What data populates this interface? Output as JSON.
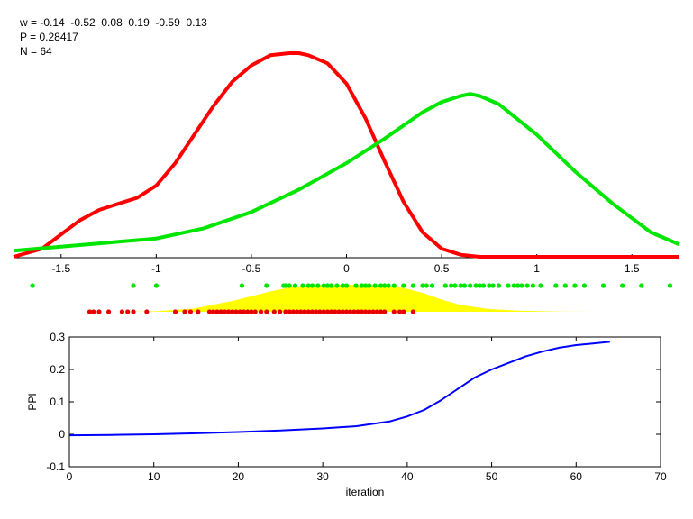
{
  "info": {
    "weights_line": "w = -0.14  -0.52  0.08  0.19  -0.59  0.13",
    "p_line": "P = 0.28417",
    "n_line": "N = 64"
  },
  "chart_data": [
    {
      "type": "line",
      "xlim": [
        -1.75,
        1.75
      ],
      "xticks": [
        "-1.5",
        "-1",
        "-0.5",
        "0",
        "0.5",
        "1",
        "1.5"
      ],
      "xtick_values": [
        -1.5,
        -1,
        -0.5,
        0,
        0.5,
        1,
        1.5
      ],
      "yaxis_visible": false,
      "series": [
        {
          "color": "#ff0000",
          "x": [
            -1.75,
            -1.6,
            -1.5,
            -1.4,
            -1.3,
            -1.2,
            -1.1,
            -1.0,
            -0.9,
            -0.8,
            -0.7,
            -0.6,
            -0.5,
            -0.4,
            -0.3,
            -0.25,
            -0.2,
            -0.1,
            0.0,
            0.1,
            0.2,
            0.3,
            0.4,
            0.5,
            0.6,
            0.7,
            0.8,
            1.0,
            1.2,
            1.5,
            1.75
          ],
          "y": [
            0.0,
            0.04,
            0.11,
            0.18,
            0.23,
            0.26,
            0.29,
            0.35,
            0.46,
            0.6,
            0.74,
            0.86,
            0.94,
            0.99,
            1.0,
            1.0,
            0.99,
            0.95,
            0.85,
            0.68,
            0.47,
            0.27,
            0.12,
            0.04,
            0.01,
            0.0,
            0.0,
            0.0,
            0.0,
            0.0,
            0.0
          ]
        },
        {
          "color": "#00e600",
          "x": [
            -1.75,
            -1.5,
            -1.25,
            -1.0,
            -0.75,
            -0.5,
            -0.25,
            0.0,
            0.2,
            0.4,
            0.5,
            0.6,
            0.65,
            0.7,
            0.8,
            1.0,
            1.2,
            1.4,
            1.6,
            1.75
          ],
          "y": [
            0.03,
            0.05,
            0.07,
            0.09,
            0.14,
            0.22,
            0.33,
            0.46,
            0.58,
            0.71,
            0.76,
            0.79,
            0.8,
            0.79,
            0.75,
            0.6,
            0.42,
            0.26,
            0.12,
            0.06
          ]
        }
      ]
    },
    {
      "type": "scatter",
      "xlim": [
        -1.75,
        1.75
      ],
      "green_points": [
        -1.65,
        -1.12,
        -1.0,
        -0.55,
        -0.42,
        -0.33,
        -0.32,
        -0.3,
        -0.27,
        -0.23,
        -0.2,
        -0.18,
        -0.15,
        -0.12,
        -0.1,
        -0.08,
        -0.05,
        -0.02,
        0.0,
        0.05,
        0.08,
        0.1,
        0.12,
        0.15,
        0.18,
        0.2,
        0.22,
        0.25,
        0.3,
        0.35,
        0.4,
        0.42,
        0.45,
        0.52,
        0.55,
        0.57,
        0.6,
        0.62,
        0.65,
        0.68,
        0.7,
        0.72,
        0.75,
        0.77,
        0.8,
        0.85,
        0.88,
        0.9,
        0.92,
        0.95,
        0.98,
        1.02,
        1.1,
        1.15,
        1.2,
        1.25,
        1.35,
        1.45,
        1.55,
        1.7
      ],
      "red_points": [
        -1.35,
        -1.33,
        -1.3,
        -1.25,
        -1.18,
        -1.15,
        -1.12,
        -1.05,
        -0.9,
        -0.85,
        -0.82,
        -0.78,
        -0.72,
        -0.7,
        -0.68,
        -0.66,
        -0.64,
        -0.62,
        -0.6,
        -0.58,
        -0.56,
        -0.54,
        -0.52,
        -0.5,
        -0.48,
        -0.45,
        -0.42,
        -0.38,
        -0.35,
        -0.32,
        -0.3,
        -0.28,
        -0.26,
        -0.24,
        -0.22,
        -0.2,
        -0.18,
        -0.16,
        -0.14,
        -0.12,
        -0.1,
        -0.08,
        -0.06,
        -0.04,
        -0.02,
        0.0,
        0.02,
        0.04,
        0.06,
        0.08,
        0.1,
        0.12,
        0.14,
        0.16,
        0.18,
        0.2,
        0.25,
        0.28,
        0.3,
        0.35
      ],
      "fill_color": "#ffff00",
      "fill_x": [
        -1.15,
        -1.0,
        -0.8,
        -0.6,
        -0.4,
        -0.3,
        -0.2,
        -0.1,
        0.0,
        0.1,
        0.2,
        0.3,
        0.4,
        0.5,
        0.6,
        0.75,
        0.9,
        1.1,
        1.3
      ],
      "fill_y": [
        0.0,
        0.02,
        0.12,
        0.4,
        0.75,
        0.9,
        0.98,
        1.0,
        1.0,
        0.99,
        0.97,
        0.88,
        0.7,
        0.45,
        0.25,
        0.1,
        0.04,
        0.01,
        0.0
      ]
    },
    {
      "type": "line",
      "xlabel": "iteration",
      "ylabel": "PPI",
      "xlim": [
        0,
        70
      ],
      "ylim": [
        -0.1,
        0.3
      ],
      "xticks": [
        "0",
        "10",
        "20",
        "30",
        "40",
        "50",
        "60",
        "70"
      ],
      "xtick_values": [
        0,
        10,
        20,
        30,
        40,
        50,
        60,
        70
      ],
      "yticks": [
        "-0.1",
        "0",
        "0.1",
        "0.2",
        "0.3"
      ],
      "ytick_values": [
        -0.1,
        0,
        0.1,
        0.2,
        0.3
      ],
      "series": [
        {
          "color": "#0000ff",
          "x": [
            0,
            5,
            10,
            15,
            20,
            25,
            30,
            34,
            38,
            40,
            42,
            44,
            46,
            48,
            50,
            52,
            54,
            56,
            58,
            60,
            62,
            64
          ],
          "y": [
            -0.003,
            -0.002,
            0.0,
            0.003,
            0.007,
            0.012,
            0.018,
            0.025,
            0.04,
            0.055,
            0.075,
            0.105,
            0.14,
            0.175,
            0.2,
            0.22,
            0.24,
            0.255,
            0.267,
            0.275,
            0.28,
            0.285
          ]
        }
      ]
    }
  ]
}
